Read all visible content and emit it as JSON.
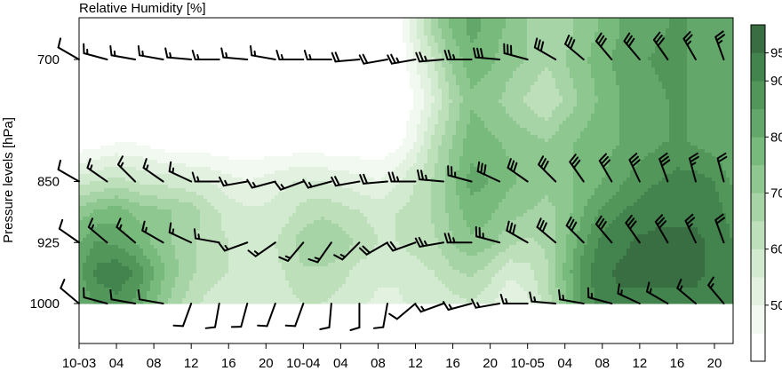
{
  "chart_data": {
    "type": "heatmap",
    "title": "Relative Humidity [%]",
    "xlabel": "",
    "ylabel": "Pressure levels [hPa]",
    "x_tick_labels": [
      "10-03",
      "04",
      "08",
      "12",
      "16",
      "20",
      "10-04",
      "04",
      "08",
      "12",
      "16",
      "20",
      "10-05",
      "04",
      "08",
      "12",
      "16",
      "20"
    ],
    "xlim_hours": [
      0,
      70
    ],
    "y_levels": [
      700,
      850,
      925,
      1000
    ],
    "y_tick_labels": [
      "700",
      "850",
      "925",
      "1000"
    ],
    "colorbar": {
      "levels": [
        45,
        50,
        55,
        60,
        65,
        70,
        75,
        80,
        85,
        90,
        95,
        100
      ],
      "tick_labels": [
        "50",
        "60",
        "70",
        "80",
        "90",
        "95"
      ],
      "colors": [
        "#ffffff",
        "#f2f9f1",
        "#e3f2e0",
        "#d2ead0",
        "#bde0bb",
        "#a7d4a6",
        "#8fc790",
        "#78b97c",
        "#63a86a",
        "#529659",
        "#43834d",
        "#386e42"
      ]
    },
    "humidity": {
      "hours": [
        0,
        2,
        4,
        6,
        8,
        10,
        12,
        14,
        16,
        18,
        20,
        22,
        24,
        26,
        28,
        30,
        32,
        34,
        36,
        38,
        40,
        42,
        44,
        46,
        48,
        50,
        52,
        54,
        56,
        58,
        60,
        62,
        64,
        66,
        68,
        70
      ],
      "levels": [
        660,
        700,
        750,
        800,
        850,
        887,
        925,
        962,
        1000
      ],
      "values": [
        [
          40,
          40,
          40,
          40,
          40,
          40,
          40,
          40,
          40,
          40,
          40,
          40,
          40,
          40,
          40,
          40,
          40,
          40,
          55,
          68,
          76,
          82,
          78,
          74,
          70,
          66,
          68,
          72,
          76,
          80,
          82,
          84,
          86,
          84,
          82,
          80
        ],
        [
          40,
          40,
          40,
          40,
          40,
          40,
          40,
          40,
          40,
          40,
          40,
          40,
          40,
          40,
          40,
          40,
          40,
          40,
          50,
          60,
          72,
          78,
          76,
          72,
          70,
          66,
          70,
          74,
          78,
          82,
          84,
          86,
          86,
          84,
          84,
          82
        ],
        [
          40,
          40,
          40,
          40,
          40,
          40,
          40,
          40,
          40,
          40,
          40,
          40,
          40,
          40,
          40,
          40,
          40,
          40,
          45,
          55,
          66,
          74,
          72,
          68,
          64,
          60,
          66,
          72,
          76,
          80,
          82,
          84,
          86,
          84,
          82,
          80
        ],
        [
          40,
          42,
          44,
          44,
          42,
          40,
          40,
          40,
          40,
          40,
          40,
          40,
          40,
          40,
          40,
          40,
          40,
          42,
          50,
          62,
          70,
          78,
          76,
          74,
          72,
          70,
          74,
          76,
          78,
          80,
          82,
          84,
          86,
          84,
          82,
          80
        ],
        [
          58,
          60,
          62,
          60,
          58,
          58,
          56,
          55,
          52,
          50,
          52,
          54,
          56,
          55,
          54,
          52,
          50,
          54,
          60,
          66,
          74,
          82,
          80,
          76,
          74,
          72,
          74,
          76,
          80,
          84,
          88,
          90,
          92,
          92,
          90,
          84
        ],
        [
          72,
          76,
          78,
          74,
          72,
          70,
          68,
          62,
          58,
          56,
          56,
          58,
          62,
          64,
          62,
          60,
          58,
          60,
          62,
          66,
          72,
          78,
          76,
          72,
          70,
          68,
          72,
          80,
          86,
          90,
          92,
          94,
          94,
          94,
          92,
          88
        ],
        [
          80,
          86,
          84,
          80,
          74,
          70,
          66,
          62,
          60,
          58,
          58,
          62,
          68,
          70,
          68,
          64,
          60,
          60,
          62,
          64,
          70,
          74,
          72,
          66,
          64,
          66,
          74,
          84,
          92,
          94,
          96,
          96,
          96,
          96,
          94,
          90
        ],
        [
          84,
          92,
          94,
          90,
          80,
          72,
          66,
          62,
          60,
          58,
          58,
          60,
          64,
          64,
          62,
          58,
          56,
          56,
          58,
          60,
          64,
          66,
          62,
          56,
          58,
          64,
          76,
          88,
          94,
          96,
          96,
          96,
          96,
          96,
          94,
          92
        ],
        [
          80,
          86,
          88,
          84,
          76,
          68,
          62,
          58,
          56,
          56,
          56,
          58,
          60,
          60,
          58,
          56,
          54,
          54,
          56,
          56,
          58,
          60,
          56,
          50,
          54,
          62,
          74,
          86,
          92,
          94,
          94,
          94,
          94,
          94,
          92,
          90
        ]
      ]
    },
    "wind_barbs": {
      "hours": [
        0,
        3,
        6,
        9,
        12,
        15,
        18,
        21,
        24,
        27,
        30,
        33,
        36,
        39,
        42,
        45,
        48,
        51,
        54,
        57,
        60,
        63,
        66,
        69
      ],
      "levels": [
        700,
        850,
        925,
        1000
      ],
      "direction_deg": [
        [
          300,
          285,
          280,
          280,
          275,
          270,
          275,
          280,
          270,
          270,
          265,
          260,
          260,
          265,
          270,
          275,
          285,
          300,
          310,
          320,
          320,
          325,
          330,
          340
        ],
        [
          300,
          305,
          315,
          305,
          295,
          270,
          260,
          255,
          250,
          255,
          260,
          265,
          270,
          275,
          285,
          295,
          305,
          315,
          325,
          330,
          335,
          340,
          345,
          345
        ],
        [
          305,
          310,
          310,
          300,
          295,
          280,
          250,
          235,
          220,
          215,
          225,
          240,
          250,
          260,
          270,
          285,
          300,
          310,
          315,
          320,
          325,
          330,
          335,
          340
        ],
        [
          310,
          285,
          280,
          280,
          200,
          190,
          195,
          200,
          200,
          185,
          180,
          190,
          230,
          250,
          255,
          260,
          270,
          275,
          280,
          285,
          295,
          300,
          310,
          320
        ]
      ],
      "speed_kt": [
        [
          10,
          15,
          15,
          15,
          15,
          15,
          15,
          15,
          15,
          15,
          20,
          20,
          25,
          25,
          25,
          30,
          30,
          30,
          30,
          30,
          30,
          30,
          25,
          25
        ],
        [
          10,
          15,
          15,
          15,
          15,
          15,
          15,
          15,
          15,
          15,
          20,
          20,
          25,
          25,
          25,
          30,
          30,
          30,
          30,
          30,
          30,
          30,
          25,
          20
        ],
        [
          10,
          15,
          15,
          15,
          15,
          15,
          15,
          15,
          15,
          15,
          15,
          20,
          20,
          25,
          25,
          25,
          30,
          30,
          30,
          30,
          30,
          30,
          25,
          20
        ],
        [
          10,
          10,
          10,
          10,
          10,
          10,
          10,
          10,
          10,
          10,
          10,
          10,
          10,
          15,
          15,
          15,
          15,
          15,
          15,
          15,
          15,
          15,
          15,
          15
        ]
      ]
    },
    "grid": false,
    "legend": "right"
  }
}
